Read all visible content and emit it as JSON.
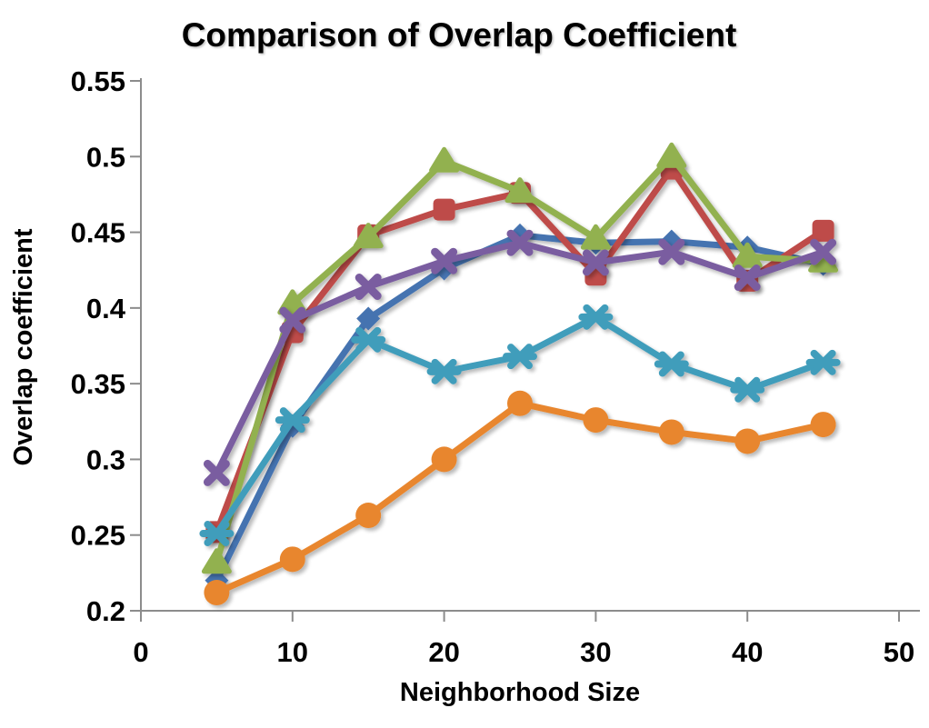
{
  "page": {
    "background": "#FFFFFF"
  },
  "chart_data": {
    "type": "line",
    "title": "Comparison of Overlap Coefficient",
    "xlabel": "Neighborhood Size",
    "ylabel": "Overlap coefficient",
    "x": [
      5,
      10,
      15,
      20,
      25,
      30,
      35,
      40,
      45
    ],
    "series": [
      {
        "name": "series-1-blue-diamond",
        "marker": "diamond",
        "color": "#4573B0",
        "values": [
          0.22,
          0.322,
          0.393,
          0.426,
          0.448,
          0.443,
          0.444,
          0.44,
          0.429
        ]
      },
      {
        "name": "series-2-red-square",
        "marker": "square",
        "color": "#BE4B48",
        "values": [
          0.252,
          0.384,
          0.448,
          0.465,
          0.476,
          0.422,
          0.492,
          0.418,
          0.451
        ]
      },
      {
        "name": "series-3-green-triangle",
        "marker": "triangle",
        "color": "#92B150",
        "values": [
          0.232,
          0.403,
          0.447,
          0.497,
          0.477,
          0.446,
          0.5,
          0.434,
          0.431
        ]
      },
      {
        "name": "series-4-purple-x",
        "marker": "x",
        "color": "#7A5DA0",
        "values": [
          0.291,
          0.392,
          0.414,
          0.431,
          0.443,
          0.43,
          0.437,
          0.42,
          0.437
        ]
      },
      {
        "name": "series-5-teal-asterisk",
        "marker": "asterisk",
        "color": "#419DBB",
        "values": [
          0.251,
          0.326,
          0.379,
          0.358,
          0.368,
          0.394,
          0.363,
          0.346,
          0.364
        ]
      },
      {
        "name": "series-6-orange-circle",
        "marker": "circle",
        "color": "#E8862D",
        "values": [
          0.212,
          0.234,
          0.263,
          0.3,
          0.337,
          0.326,
          0.318,
          0.312,
          0.323
        ]
      }
    ],
    "xlim": [
      0,
      50
    ],
    "ylim": [
      0.2,
      0.55
    ],
    "x_tick_values": [
      0,
      10,
      20,
      30,
      40,
      50
    ],
    "x_tick_labels": [
      "0",
      "10",
      "20",
      "30",
      "40",
      "50"
    ],
    "y_tick_values": [
      0.2,
      0.25,
      0.3,
      0.35,
      0.4,
      0.45,
      0.5,
      0.55
    ],
    "y_tick_labels": [
      "0.2",
      "0.25",
      "0.3",
      "0.35",
      "0.4",
      "0.45",
      "0.5",
      "0.55"
    ],
    "grid": false,
    "legend": false,
    "axis_color": "#8C8C8C",
    "text_color": "#000000"
  }
}
